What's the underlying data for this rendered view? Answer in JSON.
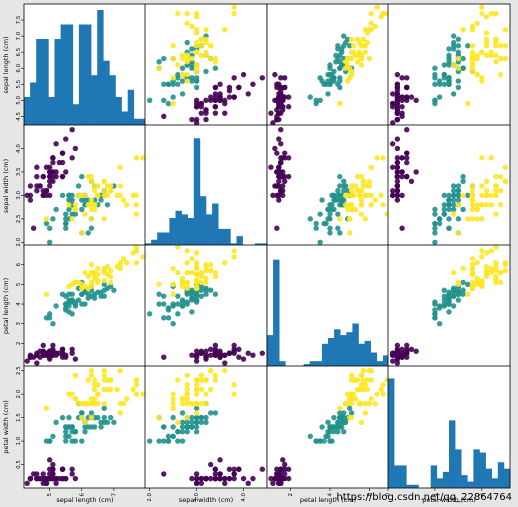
{
  "window": {
    "background": "#e6e6e6"
  },
  "colors": {
    "hist_bar": "#1f77b4",
    "class_0": "#440154",
    "class_1": "#21918c",
    "class_2": "#fde725"
  },
  "watermark": {
    "text": "https://blog.csdn.net/qq_22864764"
  },
  "chart_data": {
    "type": "scatter",
    "subtype": "scatter_matrix",
    "title": "",
    "grid": false,
    "legend": "none",
    "variables": [
      "sepal length (cm)",
      "sepal width (cm)",
      "petal length (cm)",
      "petal width (cm)"
    ],
    "diagonal": "histogram",
    "color_by": "class (0, 1, 2)",
    "ticks": [
      [
        "4.5",
        "5.0",
        "5.5",
        "6.0",
        "6.5",
        "7.0",
        "7.5"
      ],
      [
        "2.0",
        "2.5",
        "3.0",
        "3.5",
        "4.0"
      ],
      [
        "2",
        "3",
        "4",
        "5",
        "6"
      ],
      [
        "0.5",
        "1.0",
        "1.5",
        "2.0",
        "2.5"
      ]
    ],
    "bottom_ticks": [
      [
        "5",
        "6",
        "7"
      ],
      [
        "2.0",
        "3.0",
        "4.0"
      ],
      [
        "2",
        "4",
        "6"
      ],
      [
        "0",
        "1",
        "2"
      ]
    ],
    "ranges": [
      [
        4.2,
        8.0
      ],
      [
        1.9,
        4.5
      ],
      [
        0.8,
        7.0
      ],
      [
        0.0,
        2.6
      ]
    ],
    "histograms": [
      {
        "counts": [
          4,
          6,
          12,
          12,
          4,
          12,
          14,
          14,
          3,
          14,
          14,
          7,
          16,
          9,
          7,
          4,
          2,
          5,
          1,
          1
        ],
        "ymax": 16
      },
      {
        "counts": [
          1,
          2,
          4,
          4,
          8,
          10,
          9,
          8,
          30,
          14,
          9,
          12,
          5,
          5,
          1,
          3,
          0,
          0,
          1,
          1
        ],
        "ymax": 32
      },
      {
        "counts": [
          11,
          37,
          2,
          0,
          0,
          0,
          1,
          2,
          2,
          8,
          10,
          13,
          11,
          12,
          15,
          8,
          9,
          5,
          2,
          4
        ],
        "ymax": 40
      },
      {
        "counts": [
          34,
          7,
          7,
          1,
          1,
          0,
          0,
          7,
          3,
          5,
          21,
          12,
          4,
          2,
          12,
          11,
          6,
          3,
          8,
          6
        ],
        "ymax": 36
      }
    ],
    "points": [
      [
        5.1,
        3.5,
        1.4,
        0.2,
        0
      ],
      [
        4.9,
        3.0,
        1.4,
        0.2,
        0
      ],
      [
        4.7,
        3.2,
        1.3,
        0.2,
        0
      ],
      [
        4.6,
        3.1,
        1.5,
        0.2,
        0
      ],
      [
        5.0,
        3.6,
        1.4,
        0.2,
        0
      ],
      [
        5.4,
        3.9,
        1.7,
        0.4,
        0
      ],
      [
        4.6,
        3.4,
        1.4,
        0.3,
        0
      ],
      [
        5.0,
        3.4,
        1.5,
        0.2,
        0
      ],
      [
        4.4,
        2.9,
        1.4,
        0.2,
        0
      ],
      [
        4.9,
        3.1,
        1.5,
        0.1,
        0
      ],
      [
        5.4,
        3.7,
        1.5,
        0.2,
        0
      ],
      [
        4.8,
        3.4,
        1.6,
        0.2,
        0
      ],
      [
        4.8,
        3.0,
        1.4,
        0.1,
        0
      ],
      [
        4.3,
        3.0,
        1.1,
        0.1,
        0
      ],
      [
        5.8,
        4.0,
        1.2,
        0.2,
        0
      ],
      [
        5.7,
        4.4,
        1.5,
        0.4,
        0
      ],
      [
        5.4,
        3.9,
        1.3,
        0.4,
        0
      ],
      [
        5.1,
        3.5,
        1.4,
        0.3,
        0
      ],
      [
        5.7,
        3.8,
        1.7,
        0.3,
        0
      ],
      [
        5.1,
        3.8,
        1.5,
        0.3,
        0
      ],
      [
        5.4,
        3.4,
        1.7,
        0.2,
        0
      ],
      [
        5.1,
        3.7,
        1.5,
        0.4,
        0
      ],
      [
        4.6,
        3.6,
        1.0,
        0.2,
        0
      ],
      [
        5.1,
        3.3,
        1.7,
        0.5,
        0
      ],
      [
        4.8,
        3.4,
        1.9,
        0.2,
        0
      ],
      [
        5.0,
        3.0,
        1.6,
        0.2,
        0
      ],
      [
        5.0,
        3.4,
        1.6,
        0.4,
        0
      ],
      [
        5.2,
        3.5,
        1.5,
        0.2,
        0
      ],
      [
        5.2,
        3.4,
        1.4,
        0.2,
        0
      ],
      [
        4.7,
        3.2,
        1.6,
        0.2,
        0
      ],
      [
        4.8,
        3.1,
        1.6,
        0.2,
        0
      ],
      [
        5.4,
        3.4,
        1.5,
        0.4,
        0
      ],
      [
        5.2,
        4.1,
        1.5,
        0.1,
        0
      ],
      [
        5.5,
        4.2,
        1.4,
        0.2,
        0
      ],
      [
        4.9,
        3.1,
        1.5,
        0.2,
        0
      ],
      [
        5.0,
        3.2,
        1.2,
        0.2,
        0
      ],
      [
        5.5,
        3.5,
        1.3,
        0.2,
        0
      ],
      [
        4.9,
        3.6,
        1.4,
        0.1,
        0
      ],
      [
        4.4,
        3.0,
        1.3,
        0.2,
        0
      ],
      [
        5.1,
        3.4,
        1.5,
        0.2,
        0
      ],
      [
        5.0,
        3.5,
        1.3,
        0.3,
        0
      ],
      [
        4.5,
        2.3,
        1.3,
        0.3,
        0
      ],
      [
        4.4,
        3.2,
        1.3,
        0.2,
        0
      ],
      [
        5.0,
        3.5,
        1.6,
        0.6,
        0
      ],
      [
        5.1,
        3.8,
        1.9,
        0.4,
        0
      ],
      [
        4.8,
        3.0,
        1.4,
        0.3,
        0
      ],
      [
        5.1,
        3.8,
        1.6,
        0.2,
        0
      ],
      [
        4.6,
        3.2,
        1.4,
        0.2,
        0
      ],
      [
        5.3,
        3.7,
        1.5,
        0.2,
        0
      ],
      [
        5.0,
        3.3,
        1.4,
        0.2,
        0
      ],
      [
        7.0,
        3.2,
        4.7,
        1.4,
        1
      ],
      [
        6.4,
        3.2,
        4.5,
        1.5,
        1
      ],
      [
        6.9,
        3.1,
        4.9,
        1.5,
        1
      ],
      [
        5.5,
        2.3,
        4.0,
        1.3,
        1
      ],
      [
        6.5,
        2.8,
        4.6,
        1.5,
        1
      ],
      [
        5.7,
        2.8,
        4.5,
        1.3,
        1
      ],
      [
        6.3,
        3.3,
        4.7,
        1.6,
        1
      ],
      [
        4.9,
        2.4,
        3.3,
        1.0,
        1
      ],
      [
        6.6,
        2.9,
        4.6,
        1.3,
        1
      ],
      [
        5.2,
        2.7,
        3.9,
        1.4,
        1
      ],
      [
        5.0,
        2.0,
        3.5,
        1.0,
        1
      ],
      [
        5.9,
        3.0,
        4.2,
        1.5,
        1
      ],
      [
        6.0,
        2.2,
        4.0,
        1.0,
        1
      ],
      [
        6.1,
        2.9,
        4.7,
        1.4,
        1
      ],
      [
        5.6,
        2.9,
        3.6,
        1.3,
        1
      ],
      [
        6.7,
        3.1,
        4.4,
        1.4,
        1
      ],
      [
        5.6,
        3.0,
        4.5,
        1.5,
        1
      ],
      [
        5.8,
        2.7,
        4.1,
        1.0,
        1
      ],
      [
        6.2,
        2.2,
        4.5,
        1.5,
        1
      ],
      [
        5.6,
        2.5,
        3.9,
        1.1,
        1
      ],
      [
        5.9,
        3.2,
        4.8,
        1.8,
        1
      ],
      [
        6.1,
        2.8,
        4.0,
        1.3,
        1
      ],
      [
        6.3,
        2.5,
        4.9,
        1.5,
        1
      ],
      [
        6.1,
        2.8,
        4.7,
        1.2,
        1
      ],
      [
        6.4,
        2.9,
        4.3,
        1.3,
        1
      ],
      [
        6.6,
        3.0,
        4.4,
        1.4,
        1
      ],
      [
        6.8,
        2.8,
        4.8,
        1.4,
        1
      ],
      [
        6.7,
        3.0,
        5.0,
        1.7,
        1
      ],
      [
        6.0,
        2.9,
        4.5,
        1.5,
        1
      ],
      [
        5.7,
        2.6,
        3.5,
        1.0,
        1
      ],
      [
        5.5,
        2.4,
        3.8,
        1.1,
        1
      ],
      [
        5.5,
        2.4,
        3.7,
        1.0,
        1
      ],
      [
        5.8,
        2.7,
        3.9,
        1.2,
        1
      ],
      [
        6.0,
        2.7,
        5.1,
        1.6,
        1
      ],
      [
        5.4,
        3.0,
        4.5,
        1.5,
        1
      ],
      [
        6.0,
        3.4,
        4.5,
        1.6,
        1
      ],
      [
        6.7,
        3.1,
        4.7,
        1.5,
        1
      ],
      [
        6.3,
        2.3,
        4.4,
        1.3,
        1
      ],
      [
        5.6,
        3.0,
        4.1,
        1.3,
        1
      ],
      [
        5.5,
        2.5,
        4.0,
        1.3,
        1
      ],
      [
        5.5,
        2.6,
        4.4,
        1.2,
        1
      ],
      [
        6.1,
        3.0,
        4.6,
        1.4,
        1
      ],
      [
        5.8,
        2.6,
        4.0,
        1.2,
        1
      ],
      [
        5.0,
        2.3,
        3.3,
        1.0,
        1
      ],
      [
        5.6,
        2.7,
        4.2,
        1.3,
        1
      ],
      [
        5.7,
        3.0,
        4.2,
        1.2,
        1
      ],
      [
        5.7,
        2.9,
        4.2,
        1.3,
        1
      ],
      [
        6.2,
        2.9,
        4.3,
        1.3,
        1
      ],
      [
        5.1,
        2.5,
        3.0,
        1.1,
        1
      ],
      [
        5.7,
        2.8,
        4.1,
        1.3,
        1
      ],
      [
        6.3,
        3.3,
        6.0,
        2.5,
        2
      ],
      [
        5.8,
        2.7,
        5.1,
        1.9,
        2
      ],
      [
        7.1,
        3.0,
        5.9,
        2.1,
        2
      ],
      [
        6.3,
        2.9,
        5.6,
        1.8,
        2
      ],
      [
        6.5,
        3.0,
        5.8,
        2.2,
        2
      ],
      [
        7.6,
        3.0,
        6.6,
        2.1,
        2
      ],
      [
        4.9,
        2.5,
        4.5,
        1.7,
        2
      ],
      [
        7.3,
        2.9,
        6.3,
        1.8,
        2
      ],
      [
        6.7,
        2.5,
        5.8,
        1.8,
        2
      ],
      [
        7.2,
        3.6,
        6.1,
        2.5,
        2
      ],
      [
        6.5,
        3.2,
        5.1,
        2.0,
        2
      ],
      [
        6.4,
        2.7,
        5.3,
        1.9,
        2
      ],
      [
        6.8,
        3.0,
        5.5,
        2.1,
        2
      ],
      [
        5.7,
        2.5,
        5.0,
        2.0,
        2
      ],
      [
        5.8,
        2.8,
        5.1,
        2.4,
        2
      ],
      [
        6.4,
        3.2,
        5.3,
        2.3,
        2
      ],
      [
        6.5,
        3.0,
        5.5,
        1.8,
        2
      ],
      [
        7.7,
        3.8,
        6.7,
        2.2,
        2
      ],
      [
        7.7,
        2.6,
        6.9,
        2.3,
        2
      ],
      [
        6.0,
        2.2,
        5.0,
        1.5,
        2
      ],
      [
        6.9,
        3.2,
        5.7,
        2.3,
        2
      ],
      [
        5.6,
        2.8,
        4.9,
        2.0,
        2
      ],
      [
        7.7,
        2.8,
        6.7,
        2.0,
        2
      ],
      [
        6.3,
        2.7,
        4.9,
        1.8,
        2
      ],
      [
        6.7,
        3.3,
        5.7,
        2.1,
        2
      ],
      [
        7.2,
        3.2,
        6.0,
        1.8,
        2
      ],
      [
        6.2,
        2.8,
        4.8,
        1.8,
        2
      ],
      [
        6.1,
        3.0,
        4.9,
        1.8,
        2
      ],
      [
        6.4,
        2.8,
        5.6,
        2.1,
        2
      ],
      [
        7.2,
        3.0,
        5.8,
        1.6,
        2
      ],
      [
        7.4,
        2.8,
        6.1,
        1.9,
        2
      ],
      [
        7.9,
        3.8,
        6.4,
        2.0,
        2
      ],
      [
        6.4,
        2.8,
        5.6,
        2.2,
        2
      ],
      [
        6.3,
        2.8,
        5.1,
        1.5,
        2
      ],
      [
        6.1,
        2.6,
        5.6,
        1.4,
        2
      ],
      [
        7.7,
        3.0,
        6.1,
        2.3,
        2
      ],
      [
        6.3,
        3.4,
        5.6,
        2.4,
        2
      ],
      [
        6.4,
        3.1,
        5.5,
        1.8,
        2
      ],
      [
        6.0,
        3.0,
        4.8,
        1.8,
        2
      ],
      [
        6.9,
        3.1,
        5.4,
        2.1,
        2
      ],
      [
        6.7,
        3.1,
        5.6,
        2.4,
        2
      ],
      [
        6.9,
        3.1,
        5.1,
        2.3,
        2
      ],
      [
        5.8,
        2.7,
        5.1,
        1.9,
        2
      ],
      [
        6.8,
        3.2,
        5.9,
        2.3,
        2
      ],
      [
        6.7,
        3.3,
        5.7,
        2.5,
        2
      ],
      [
        6.7,
        3.0,
        5.2,
        2.3,
        2
      ],
      [
        6.3,
        2.5,
        5.0,
        1.9,
        2
      ],
      [
        6.5,
        3.0,
        5.2,
        2.0,
        2
      ],
      [
        6.2,
        3.4,
        5.4,
        2.3,
        2
      ],
      [
        5.9,
        3.0,
        5.1,
        1.8,
        2
      ]
    ]
  }
}
